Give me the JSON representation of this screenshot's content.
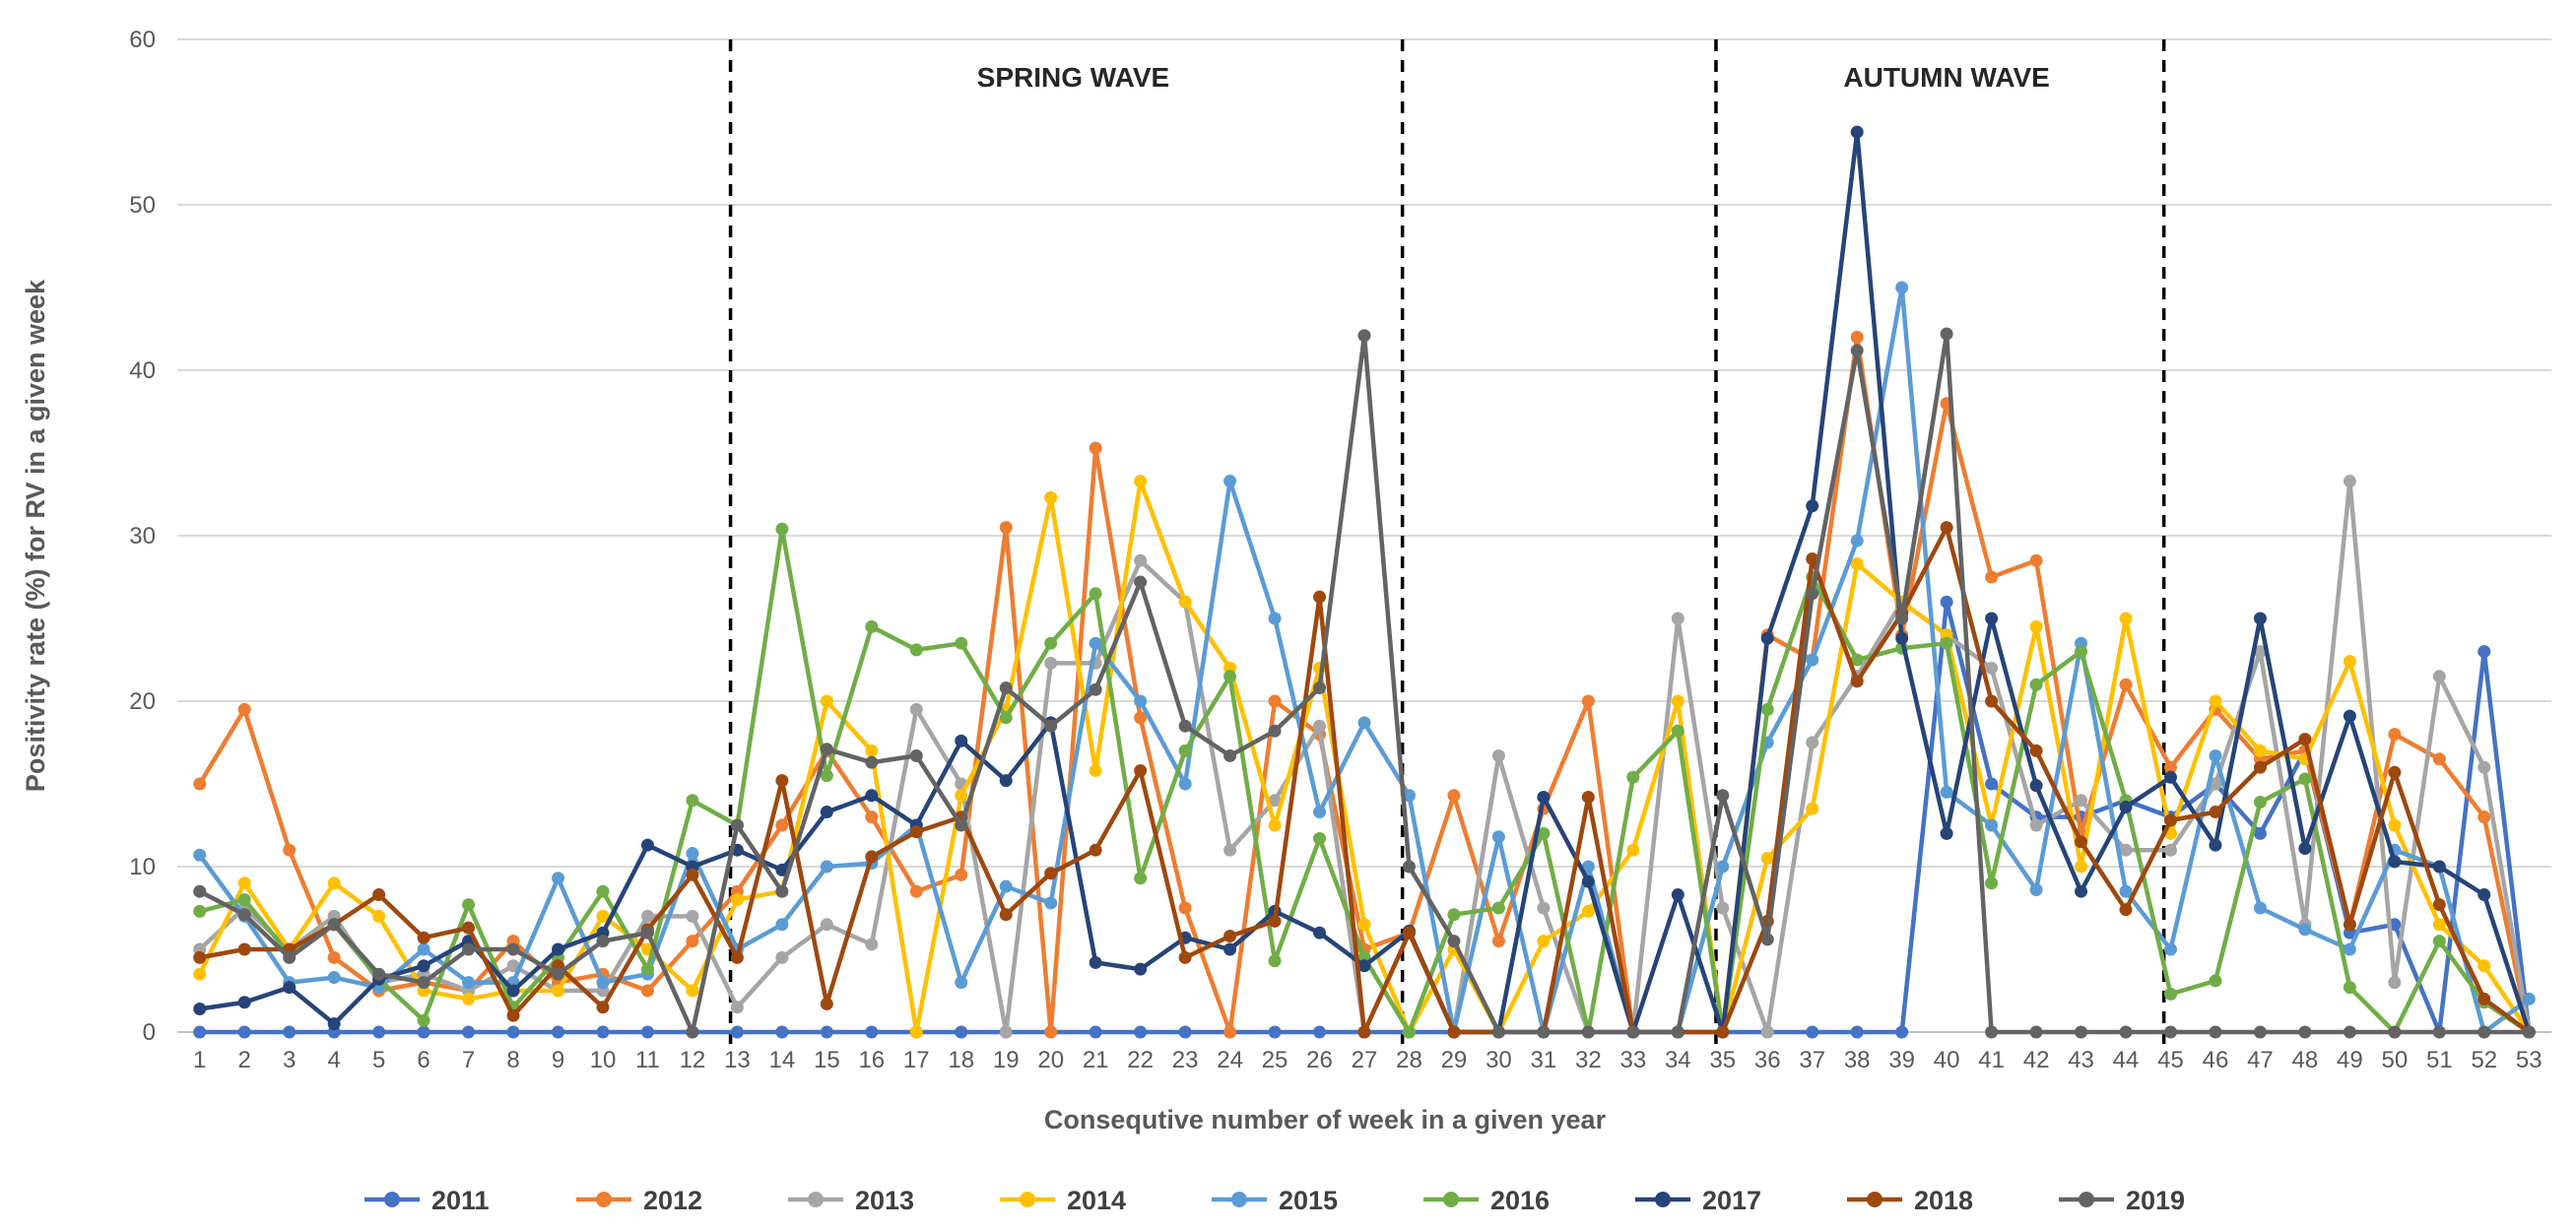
{
  "chart_data": {
    "type": "line",
    "title": "",
    "xlabel": "Consequtive number of week in a given year",
    "ylabel": "Positivity rate (%) for RV in a given week",
    "ylim": [
      0,
      60
    ],
    "yticks": [
      0,
      10,
      20,
      30,
      40,
      50,
      60
    ],
    "x": [
      1,
      2,
      3,
      4,
      5,
      6,
      7,
      8,
      9,
      10,
      11,
      12,
      13,
      14,
      15,
      16,
      17,
      18,
      19,
      20,
      21,
      22,
      23,
      24,
      25,
      26,
      27,
      28,
      29,
      30,
      31,
      32,
      33,
      34,
      35,
      36,
      37,
      38,
      39,
      40,
      41,
      42,
      43,
      44,
      45,
      46,
      47,
      48,
      49,
      50,
      51,
      52,
      53
    ],
    "grid": "horizontal",
    "legend": "bottom",
    "dividers": [
      13,
      28,
      35,
      45
    ],
    "annotations": [
      {
        "text": "SPRING WAVE",
        "x": 20.5
      },
      {
        "text": "AUTUMN WAVE",
        "x": 40
      }
    ],
    "series": [
      {
        "name": "2011",
        "color": "#4472C4",
        "values": [
          0,
          0,
          0,
          0,
          0,
          0,
          0,
          0,
          0,
          0,
          0,
          0,
          0,
          0,
          0,
          0,
          0,
          0,
          0,
          0,
          0,
          0,
          0,
          0,
          0,
          0,
          0,
          0,
          0,
          0,
          0,
          0,
          0,
          0,
          0,
          0,
          0,
          0,
          0,
          26,
          15,
          13,
          13,
          14,
          13,
          15,
          12,
          17,
          6,
          6.5,
          0,
          23,
          0
        ]
      },
      {
        "name": "2012",
        "color": "#ED7D31",
        "values": [
          15,
          19.5,
          11,
          4.5,
          2.5,
          3,
          2.5,
          5.5,
          3,
          3.5,
          2.5,
          5.5,
          8.5,
          12.5,
          17,
          13,
          8.5,
          9.5,
          30.5,
          0,
          35.3,
          19,
          7.5,
          0,
          20,
          18,
          5,
          6,
          14.3,
          5.5,
          13.5,
          20,
          0,
          0,
          0,
          24,
          22.5,
          42,
          24,
          38,
          27.5,
          28.5,
          12,
          21,
          16,
          19.5,
          16.5,
          17,
          6.5,
          18,
          16.5,
          13,
          0
        ]
      },
      {
        "name": "2013",
        "color": "#A5A5A5",
        "values": [
          5,
          7.5,
          5,
          7,
          3,
          3.5,
          2.5,
          4,
          2.5,
          2.5,
          7,
          7,
          1.5,
          4.5,
          6.5,
          5.3,
          19.5,
          15,
          0,
          22.3,
          22.3,
          28.5,
          26,
          11,
          14,
          18.5,
          0,
          6,
          0,
          16.7,
          7.5,
          0,
          0,
          25,
          7.5,
          0,
          17.5,
          21.5,
          26,
          24,
          22,
          12.5,
          14,
          11,
          11,
          15,
          23,
          6.5,
          33.3,
          3,
          21.5,
          16,
          0
        ]
      },
      {
        "name": "2014",
        "color": "#FFC000",
        "values": [
          3.5,
          9,
          5,
          9,
          7,
          2.5,
          2,
          2.5,
          2.5,
          7,
          5,
          2.5,
          8,
          8.5,
          20,
          17,
          0,
          14.3,
          19.5,
          32.3,
          15.8,
          33.3,
          26,
          22,
          12.5,
          22,
          6.5,
          0,
          5,
          0,
          5.5,
          7.3,
          11,
          20,
          0,
          10.5,
          13.5,
          28.3,
          26,
          24,
          12.5,
          24.5,
          10,
          25,
          12,
          20,
          17,
          16.5,
          22.4,
          12.5,
          6.5,
          4,
          0
        ]
      },
      {
        "name": "2015",
        "color": "#5B9BD5",
        "values": [
          10.7,
          7,
          3,
          3.3,
          2.7,
          5,
          3,
          3,
          9.3,
          3,
          3.5,
          10.8,
          5,
          6.5,
          10,
          10.2,
          12.5,
          3,
          8.8,
          7.8,
          23.5,
          20,
          15,
          33.3,
          25,
          13.3,
          18.7,
          14.3,
          0,
          11.8,
          0,
          10,
          0,
          0,
          10,
          17.5,
          22.5,
          29.7,
          45,
          14.5,
          12.5,
          8.6,
          23.5,
          8.5,
          5,
          16.7,
          7.5,
          6.2,
          5,
          11,
          10,
          0,
          2
        ]
      },
      {
        "name": "2016",
        "color": "#70AD47",
        "values": [
          7.3,
          8,
          4.7,
          6.5,
          3.2,
          0.7,
          7.7,
          1.5,
          4.5,
          8.5,
          3.8,
          14,
          12.5,
          30.4,
          15.5,
          24.5,
          23.1,
          23.5,
          19,
          23.5,
          26.5,
          9.3,
          17,
          21.5,
          4.3,
          11.7,
          4.5,
          0,
          7.1,
          7.5,
          12,
          0,
          15.4,
          18.2,
          0,
          19.5,
          27.5,
          22.5,
          23.2,
          23.5,
          9,
          21,
          23,
          14,
          2.3,
          3.1,
          13.9,
          15.3,
          2.7,
          0,
          5.5,
          1.8,
          0
        ]
      },
      {
        "name": "2017",
        "color": "#264478",
        "values": [
          1.4,
          1.8,
          2.7,
          0.5,
          3.2,
          4,
          5.5,
          2.5,
          5,
          6,
          11.3,
          10,
          11,
          9.8,
          13.3,
          14.3,
          12.5,
          17.6,
          15.2,
          18.7,
          4.2,
          3.8,
          5.7,
          5,
          7.3,
          6,
          4,
          6.1,
          0,
          0,
          14.2,
          9.1,
          0,
          8.3,
          0,
          23.8,
          31.8,
          54.4,
          23.8,
          12,
          25,
          14.9,
          8.5,
          13.6,
          15.4,
          11.3,
          25,
          11.1,
          19.1,
          10.3,
          10,
          8.3,
          0
        ]
      },
      {
        "name": "2018",
        "color": "#9E480E",
        "values": [
          4.5,
          5,
          5,
          6.5,
          8.3,
          5.7,
          6.3,
          1,
          4,
          1.5,
          6.2,
          9.5,
          4.5,
          15.2,
          1.7,
          10.6,
          12.1,
          13,
          7.1,
          9.6,
          11,
          15.8,
          4.5,
          5.8,
          6.7,
          26.3,
          0,
          6,
          0,
          0,
          0,
          14.2,
          0,
          0,
          0,
          6.7,
          28.6,
          21.2,
          25.3,
          30.5,
          20,
          17,
          11.5,
          7.4,
          12.8,
          13.3,
          16,
          17.7,
          6.5,
          15.7,
          7.7,
          2,
          0
        ]
      },
      {
        "name": "2019",
        "color": "#636363",
        "values": [
          8.5,
          7.1,
          4.5,
          6.5,
          3.5,
          3,
          5,
          5,
          3.5,
          5.5,
          6,
          0,
          12.5,
          8.5,
          17.1,
          16.3,
          16.7,
          12.5,
          20.8,
          18.5,
          20.7,
          27.2,
          18.5,
          16.7,
          18.2,
          20.8,
          42.1,
          10,
          5.5,
          0,
          0,
          0,
          0,
          0,
          14.3,
          5.6,
          26.5,
          41.2,
          25,
          42.2,
          0,
          0,
          0,
          0,
          0,
          0,
          0,
          0,
          0,
          0,
          0,
          0,
          0
        ]
      }
    ]
  }
}
